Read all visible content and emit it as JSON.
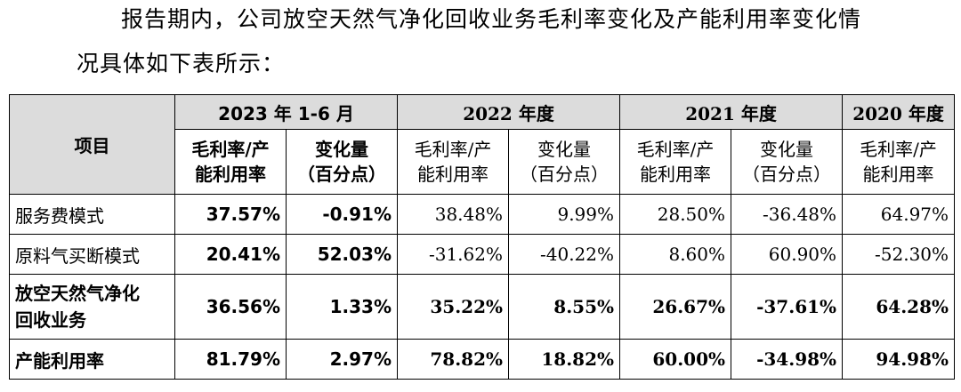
{
  "paragraph": {
    "line1": "报告期内，公司放空天然气净化回收业务毛利率变化及产能利用率变化情",
    "line2": "况具体如下表所示："
  },
  "table": {
    "item_header": "项目",
    "periods": [
      "2023 年 1-6 月",
      "2022 年度",
      "2021 年度",
      "2020 年度"
    ],
    "sub_headers": {
      "rate": "毛利率/产能利用率",
      "rate_line1": "毛利率/产",
      "rate_line2": "能利用率",
      "change_line1": "变化量",
      "change_line2": "（百分点）"
    },
    "rows": [
      {
        "label": "服务费模式",
        "values": [
          "37.57%",
          "-0.91%",
          "38.48%",
          "9.99%",
          "28.50%",
          "-36.48%",
          "64.97%"
        ]
      },
      {
        "label": "原料气买断模式",
        "values": [
          "20.41%",
          "52.03%",
          "-31.62%",
          "-40.22%",
          "8.60%",
          "60.90%",
          "-52.30%"
        ]
      },
      {
        "label_line1": "放空天然气净化",
        "label_line2": "回收业务",
        "values": [
          "36.56%",
          "1.33%",
          "35.22%",
          "8.55%",
          "26.67%",
          "-37.61%",
          "64.28%"
        ]
      },
      {
        "label": "产能利用率",
        "values": [
          "81.79%",
          "2.97%",
          "78.82%",
          "18.82%",
          "60.00%",
          "-34.98%",
          "94.98%"
        ]
      }
    ]
  }
}
